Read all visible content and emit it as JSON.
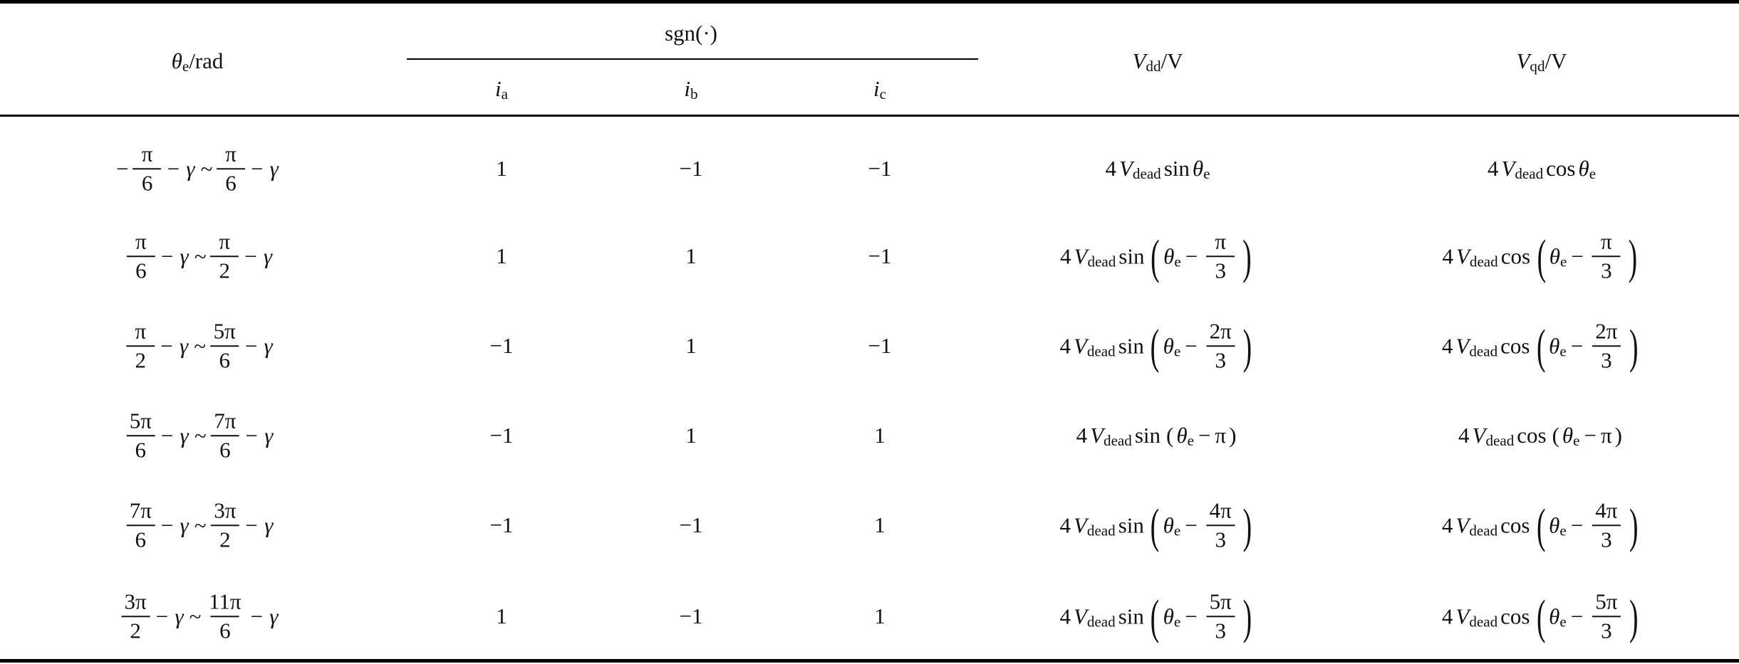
{
  "header": {
    "theta": {
      "sym": "θ",
      "sub": "e",
      "unit": "/rad"
    },
    "sgn": "sgn(·)",
    "currents": [
      {
        "sym": "i",
        "sub": "a"
      },
      {
        "sym": "i",
        "sub": "b"
      },
      {
        "sym": "i",
        "sub": "c"
      }
    ],
    "vdd": {
      "sym": "V",
      "sub": "dd",
      "unit": "/V"
    },
    "vqd": {
      "sym": "V",
      "sub": "qd",
      "unit": "/V"
    }
  },
  "rows": [
    {
      "range": {
        "lower": {
          "sign": "−",
          "num": "π",
          "den": "6"
        },
        "sep": "− γ ~",
        "upper": {
          "num": "π",
          "den": "6"
        },
        "tail": "− γ"
      },
      "signs": [
        "1",
        "−1",
        "−1"
      ],
      "vdd": {
        "coef": "4",
        "sym": "V",
        "sub": "dead",
        "fn": "sin",
        "arg": {
          "var": "θ",
          "sub": "e"
        }
      },
      "vqd": {
        "coef": "4",
        "sym": "V",
        "sub": "dead",
        "fn": "cos",
        "arg": {
          "var": "θ",
          "sub": "e"
        }
      }
    },
    {
      "range": {
        "lower": {
          "num": "π",
          "den": "6"
        },
        "sep": "− γ ~",
        "upper": {
          "num": "π",
          "den": "2"
        },
        "tail": "− γ"
      },
      "signs": [
        "1",
        "1",
        "−1"
      ],
      "vdd": {
        "coef": "4",
        "sym": "V",
        "sub": "dead",
        "fn": "sin",
        "arg": {
          "open": "(",
          "var": "θ",
          "sub": "e",
          "op": "−",
          "num": "π",
          "den": "3",
          "close": ")"
        }
      },
      "vqd": {
        "coef": "4",
        "sym": "V",
        "sub": "dead",
        "fn": "cos",
        "arg": {
          "open": "(",
          "var": "θ",
          "sub": "e",
          "op": "−",
          "num": "π",
          "den": "3",
          "close": ")"
        }
      }
    },
    {
      "range": {
        "lower": {
          "num": "π",
          "den": "2"
        },
        "sep": "− γ ~",
        "upper": {
          "num": "5π",
          "den": "6"
        },
        "tail": "− γ"
      },
      "signs": [
        "−1",
        "1",
        "−1"
      ],
      "vdd": {
        "coef": "4",
        "sym": "V",
        "sub": "dead",
        "fn": "sin",
        "arg": {
          "open": "(",
          "var": "θ",
          "sub": "e",
          "op": "−",
          "num": "2π",
          "den": "3",
          "close": ")"
        }
      },
      "vqd": {
        "coef": "4",
        "sym": "V",
        "sub": "dead",
        "fn": "cos",
        "arg": {
          "open": "(",
          "var": "θ",
          "sub": "e",
          "op": "−",
          "num": "2π",
          "den": "3",
          "close": ")"
        }
      }
    },
    {
      "range": {
        "lower": {
          "num": "5π",
          "den": "6"
        },
        "sep": "− γ ~",
        "upper": {
          "num": "7π",
          "den": "6"
        },
        "tail": "− γ"
      },
      "signs": [
        "−1",
        "1",
        "1"
      ],
      "vdd": {
        "coef": "4",
        "sym": "V",
        "sub": "dead",
        "fn": "sin",
        "arg": {
          "sopen": "(",
          "var": "θ",
          "sub": "e",
          "op": "−",
          "term": "π",
          "sclose": ")"
        }
      },
      "vqd": {
        "coef": "4",
        "sym": "V",
        "sub": "dead",
        "fn": "cos",
        "arg": {
          "sopen": "(",
          "var": "θ",
          "sub": "e",
          "op": "−",
          "term": "π",
          "sclose": ")"
        }
      }
    },
    {
      "range": {
        "lower": {
          "num": "7π",
          "den": "6"
        },
        "sep": "− γ ~",
        "upper": {
          "num": "3π",
          "den": "2"
        },
        "tail": "− γ"
      },
      "signs": [
        "−1",
        "−1",
        "1"
      ],
      "vdd": {
        "coef": "4",
        "sym": "V",
        "sub": "dead",
        "fn": "sin",
        "arg": {
          "open": "(",
          "var": "θ",
          "sub": "e",
          "op": "−",
          "num": "4π",
          "den": "3",
          "close": ")"
        }
      },
      "vqd": {
        "coef": "4",
        "sym": "V",
        "sub": "dead",
        "fn": "cos",
        "arg": {
          "open": "(",
          "var": "θ",
          "sub": "e",
          "op": "−",
          "num": "4π",
          "den": "3",
          "close": ")"
        }
      }
    },
    {
      "range": {
        "lower": {
          "num": "3π",
          "den": "2"
        },
        "sep": "− γ ~",
        "upper": {
          "num": "11π",
          "den": "6"
        },
        "tail": "− γ"
      },
      "signs": [
        "1",
        "−1",
        "1"
      ],
      "vdd": {
        "coef": "4",
        "sym": "V",
        "sub": "dead",
        "fn": "sin",
        "arg": {
          "open": "(",
          "var": "θ",
          "sub": "e",
          "op": "−",
          "num": "5π",
          "den": "3",
          "close": ")"
        }
      },
      "vqd": {
        "coef": "4",
        "sym": "V",
        "sub": "dead",
        "fn": "cos",
        "arg": {
          "open": "(",
          "var": "θ",
          "sub": "e",
          "op": "−",
          "num": "5π",
          "den": "3",
          "close": ")"
        }
      }
    }
  ]
}
